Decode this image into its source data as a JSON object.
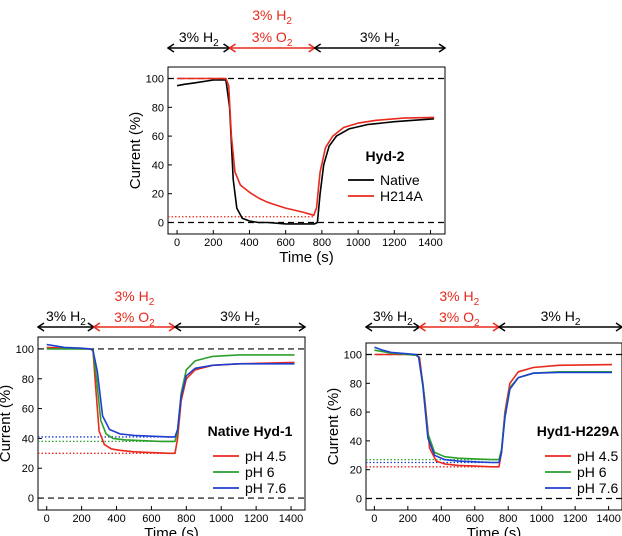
{
  "colors": {
    "black": "#000000",
    "red": "#e8291c",
    "green": "#2aa02a",
    "blue": "#1f3fd0"
  },
  "chart_data": [
    {
      "type": "line",
      "id": "hyd2",
      "title": "Hyd-2",
      "xlabel": "Time (s)",
      "ylabel": "Current (%)",
      "xlim": [
        -50,
        1480
      ],
      "ylim": [
        -8,
        108
      ],
      "xticks": [
        "0",
        "200",
        "400",
        "600",
        "800",
        "1000",
        "1200",
        "1400"
      ],
      "yticks": [
        "0",
        "20",
        "40",
        "60",
        "80",
        "100"
      ],
      "gas_phases": [
        {
          "label": "3% H",
          "sub": "2",
          "x_start": -50,
          "x_end": 290,
          "color": "black"
        },
        {
          "label": "3% H",
          "sub": "2",
          "label2": "3% O",
          "sub2": "2",
          "x_start": 290,
          "x_end": 760,
          "color": "red"
        },
        {
          "label": "3% H",
          "sub": "2",
          "x_start": 760,
          "x_end": 1480,
          "color": "black"
        }
      ],
      "reference_lines": [
        {
          "y": 100,
          "style": "dashed",
          "color": "black"
        },
        {
          "y": 0,
          "style": "dashed",
          "color": "black"
        },
        {
          "y": 4,
          "x_end": 760,
          "style": "dotted",
          "color": "red"
        }
      ],
      "series": [
        {
          "name": "Native",
          "color": "black",
          "x": [
            0,
            40,
            100,
            200,
            270,
            290,
            310,
            330,
            360,
            400,
            450,
            500,
            600,
            700,
            760,
            775,
            790,
            810,
            840,
            880,
            950,
            1050,
            1200,
            1420
          ],
          "y": [
            95,
            96,
            97,
            99,
            99,
            80,
            30,
            10,
            3,
            1,
            0,
            0,
            -1,
            -1,
            -1,
            0,
            20,
            40,
            53,
            60,
            65,
            68,
            70,
            72
          ]
        },
        {
          "name": "H214A",
          "color": "red",
          "x": [
            0,
            50,
            100,
            200,
            270,
            285,
            300,
            320,
            350,
            400,
            450,
            500,
            550,
            600,
            700,
            755,
            770,
            790,
            820,
            860,
            920,
            1000,
            1100,
            1250,
            1420
          ],
          "y": [
            100,
            100,
            100,
            100,
            100,
            95,
            60,
            35,
            26,
            21,
            17,
            14,
            12,
            10,
            7,
            5,
            10,
            35,
            52,
            60,
            66,
            69,
            71,
            72.5,
            73
          ]
        }
      ],
      "legend": "bottom-right"
    },
    {
      "type": "line",
      "id": "native_hyd1",
      "title": "Native Hyd-1",
      "xlabel": "Time (s)",
      "ylabel": "Current (%)",
      "xlim": [
        -50,
        1480
      ],
      "ylim": [
        -8,
        108
      ],
      "xticks": [
        "0",
        "200",
        "400",
        "600",
        "800",
        "1000",
        "1200",
        "1400"
      ],
      "yticks": [
        "0",
        "20",
        "40",
        "60",
        "80",
        "100"
      ],
      "gas_phases": [
        {
          "label": "3% H",
          "sub": "2",
          "x_start": -50,
          "x_end": 270,
          "color": "black"
        },
        {
          "label": "3% H",
          "sub": "2",
          "label2": "3% O",
          "sub2": "2",
          "x_start": 270,
          "x_end": 735,
          "color": "red"
        },
        {
          "label": "3% H",
          "sub": "2",
          "x_start": 735,
          "x_end": 1480,
          "color": "black"
        }
      ],
      "reference_lines": [
        {
          "y": 100,
          "style": "dashed",
          "color": "black"
        },
        {
          "y": 0,
          "style": "dashed",
          "color": "black"
        },
        {
          "y": 30,
          "x_end": 735,
          "style": "dotted",
          "color": "red"
        },
        {
          "y": 38,
          "x_end": 735,
          "style": "dotted",
          "color": "green"
        },
        {
          "y": 41,
          "x_end": 735,
          "style": "dotted",
          "color": "blue"
        }
      ],
      "series": [
        {
          "name": "pH 4.5",
          "color": "red",
          "x": [
            0,
            100,
            200,
            250,
            265,
            280,
            300,
            330,
            370,
            420,
            500,
            600,
            700,
            735,
            750,
            770,
            800,
            850,
            950,
            1100,
            1420
          ],
          "y": [
            101,
            100.5,
            100,
            100,
            99,
            75,
            45,
            36,
            33,
            32,
            31,
            30.5,
            30,
            30,
            40,
            65,
            80,
            86,
            89,
            90,
            91
          ]
        },
        {
          "name": "pH 6",
          "color": "green",
          "x": [
            0,
            100,
            200,
            250,
            265,
            285,
            310,
            340,
            380,
            450,
            550,
            650,
            735,
            750,
            770,
            800,
            850,
            950,
            1100,
            1420
          ],
          "y": [
            100,
            100,
            100,
            100,
            99,
            80,
            52,
            43,
            40,
            39,
            38.5,
            38,
            38,
            45,
            70,
            86,
            92,
            95,
            96,
            96
          ]
        },
        {
          "name": "pH 7.6",
          "color": "blue",
          "x": [
            0,
            50,
            100,
            200,
            250,
            265,
            290,
            320,
            360,
            420,
            500,
            600,
            700,
            735,
            750,
            770,
            800,
            850,
            950,
            1100,
            1420
          ],
          "y": [
            103,
            102,
            101,
            100.5,
            100,
            99,
            85,
            55,
            46,
            43,
            42,
            41.5,
            41,
            41,
            46,
            68,
            82,
            87,
            89,
            90,
            90
          ]
        }
      ],
      "legend": "bottom-right"
    },
    {
      "type": "line",
      "id": "hyd1_h229a",
      "title": "Hyd1-H229A",
      "xlabel": "Time (s)",
      "ylabel": "Current (%)",
      "xlim": [
        -50,
        1480
      ],
      "ylim": [
        -8,
        108
      ],
      "xticks": [
        "0",
        "200",
        "400",
        "600",
        "800",
        "1000",
        "1200",
        "1400"
      ],
      "yticks": [
        "0",
        "20",
        "40",
        "60",
        "80",
        "100"
      ],
      "gas_phases": [
        {
          "label": "3% H",
          "sub": "2",
          "x_start": -50,
          "x_end": 270,
          "color": "black"
        },
        {
          "label": "3% H",
          "sub": "2",
          "label2": "3% O",
          "sub2": "2",
          "x_start": 270,
          "x_end": 745,
          "color": "red"
        },
        {
          "label": "3% H",
          "sub": "2",
          "x_start": 745,
          "x_end": 1480,
          "color": "black"
        }
      ],
      "reference_lines": [
        {
          "y": 100,
          "style": "dashed",
          "color": "black"
        },
        {
          "y": 0,
          "style": "dashed",
          "color": "black"
        },
        {
          "y": 22,
          "x_end": 745,
          "style": "dotted",
          "color": "red"
        },
        {
          "y": 27,
          "x_end": 745,
          "style": "dotted",
          "color": "green"
        },
        {
          "y": 25,
          "x_end": 745,
          "style": "dotted",
          "color": "blue"
        }
      ],
      "series": [
        {
          "name": "pH 4.5",
          "color": "red",
          "x": [
            0,
            100,
            200,
            250,
            270,
            300,
            330,
            370,
            420,
            500,
            600,
            700,
            745,
            760,
            780,
            810,
            860,
            950,
            1100,
            1420
          ],
          "y": [
            100,
            100,
            100,
            99.5,
            98,
            70,
            35,
            26,
            24,
            23,
            22.5,
            22,
            22,
            32,
            60,
            80,
            88,
            91,
            92.5,
            93
          ]
        },
        {
          "name": "pH 6",
          "color": "green",
          "x": [
            0,
            50,
            100,
            200,
            250,
            265,
            290,
            320,
            360,
            420,
            500,
            600,
            700,
            745,
            760,
            780,
            810,
            860,
            950,
            1100,
            1420
          ],
          "y": [
            103,
            102,
            101,
            100,
            99.5,
            98,
            80,
            45,
            32,
            29,
            28,
            27.5,
            27,
            27,
            34,
            58,
            77,
            84,
            87,
            88,
            88
          ]
        },
        {
          "name": "pH 7.6",
          "color": "blue",
          "x": [
            0,
            50,
            100,
            200,
            250,
            265,
            290,
            320,
            360,
            420,
            500,
            600,
            700,
            745,
            760,
            780,
            810,
            860,
            950,
            1100,
            1420
          ],
          "y": [
            105,
            103,
            101.5,
            100.5,
            100,
            98,
            78,
            42,
            30,
            27,
            26,
            25.5,
            25,
            25,
            32,
            56,
            76,
            84,
            87,
            87.5,
            87.5
          ]
        }
      ],
      "legend": "bottom-right"
    }
  ]
}
